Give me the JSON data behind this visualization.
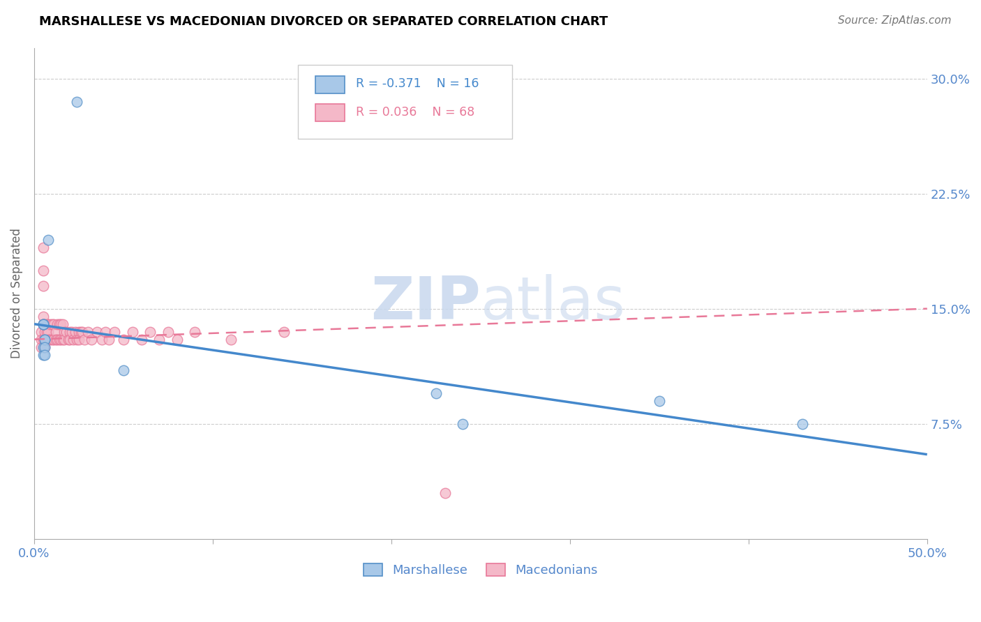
{
  "title": "MARSHALLESE VS MACEDONIAN DIVORCED OR SEPARATED CORRELATION CHART",
  "source": "Source: ZipAtlas.com",
  "ylabel": "Divorced or Separated",
  "xlim": [
    0.0,
    0.5
  ],
  "ylim": [
    0.0,
    0.32
  ],
  "x_ticks": [
    0.0,
    0.1,
    0.2,
    0.3,
    0.4,
    0.5
  ],
  "x_tick_labels": [
    "0.0%",
    "",
    "",
    "",
    "",
    "50.0%"
  ],
  "y_ticks": [
    0.0,
    0.075,
    0.15,
    0.225,
    0.3
  ],
  "y_tick_labels_right": [
    "",
    "7.5%",
    "15.0%",
    "22.5%",
    "30.0%"
  ],
  "blue_color": "#a8c8e8",
  "pink_color": "#f4b8c8",
  "blue_edge_color": "#5590c8",
  "pink_edge_color": "#e87898",
  "blue_line_color": "#4488cc",
  "pink_line_color": "#e87898",
  "watermark": "ZIPatlas",
  "marshallese_x": [
    0.024,
    0.008,
    0.005,
    0.006,
    0.005,
    0.006,
    0.005,
    0.005,
    0.005,
    0.006,
    0.006,
    0.35,
    0.43,
    0.225,
    0.24,
    0.05
  ],
  "marshallese_y": [
    0.285,
    0.195,
    0.14,
    0.13,
    0.125,
    0.13,
    0.14,
    0.12,
    0.14,
    0.125,
    0.12,
    0.09,
    0.075,
    0.095,
    0.075,
    0.11
  ],
  "macedonian_x": [
    0.004,
    0.004,
    0.004,
    0.005,
    0.005,
    0.005,
    0.005,
    0.005,
    0.005,
    0.006,
    0.006,
    0.006,
    0.006,
    0.007,
    0.007,
    0.007,
    0.008,
    0.008,
    0.008,
    0.009,
    0.009,
    0.01,
    0.01,
    0.011,
    0.011,
    0.012,
    0.012,
    0.013,
    0.013,
    0.014,
    0.014,
    0.015,
    0.015,
    0.016,
    0.016,
    0.017,
    0.017,
    0.018,
    0.019,
    0.02,
    0.02,
    0.021,
    0.022,
    0.023,
    0.024,
    0.025,
    0.025,
    0.026,
    0.027,
    0.028,
    0.03,
    0.032,
    0.035,
    0.038,
    0.04,
    0.042,
    0.045,
    0.05,
    0.055,
    0.06,
    0.065,
    0.07,
    0.075,
    0.08,
    0.09,
    0.11,
    0.14,
    0.23
  ],
  "macedonian_y": [
    0.135,
    0.13,
    0.125,
    0.19,
    0.175,
    0.165,
    0.145,
    0.14,
    0.13,
    0.14,
    0.135,
    0.13,
    0.125,
    0.14,
    0.135,
    0.13,
    0.14,
    0.135,
    0.13,
    0.14,
    0.13,
    0.14,
    0.13,
    0.14,
    0.13,
    0.135,
    0.13,
    0.14,
    0.13,
    0.14,
    0.13,
    0.14,
    0.13,
    0.14,
    0.13,
    0.135,
    0.13,
    0.135,
    0.13,
    0.135,
    0.13,
    0.135,
    0.13,
    0.135,
    0.13,
    0.135,
    0.13,
    0.135,
    0.135,
    0.13,
    0.135,
    0.13,
    0.135,
    0.13,
    0.135,
    0.13,
    0.135,
    0.13,
    0.135,
    0.13,
    0.135,
    0.13,
    0.135,
    0.13,
    0.135,
    0.13,
    0.135,
    0.03
  ],
  "blue_trend_x": [
    0.0,
    0.5
  ],
  "blue_trend_y": [
    0.14,
    0.055
  ],
  "pink_trend_x": [
    0.0,
    0.5
  ],
  "pink_trend_y": [
    0.13,
    0.15
  ]
}
